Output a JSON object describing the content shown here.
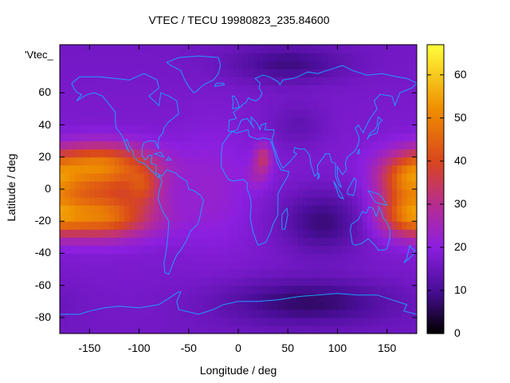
{
  "chart_data": {
    "type": "heatmap",
    "title": "VTEC / TECU 19980823_235.84600",
    "xlabel": "Longitude / deg",
    "ylabel": "Latitude / deg",
    "xlim": [
      -180,
      180
    ],
    "ylim": [
      -90,
      90
    ],
    "x_ticks": [
      -150,
      -100,
      -50,
      0,
      50,
      100,
      150
    ],
    "y_ticks": [
      60,
      40,
      20,
      0,
      -20,
      -40,
      -60,
      -80
    ],
    "colorbar": {
      "range": [
        0,
        67
      ],
      "ticks": [
        0,
        10,
        20,
        30,
        40,
        50,
        60
      ],
      "palette_stops": [
        {
          "v": 0,
          "color": "#000000"
        },
        {
          "v": 10,
          "color": "#4a0e99"
        },
        {
          "v": 20,
          "color": "#8c1fe0"
        },
        {
          "v": 30,
          "color": "#b82d8e"
        },
        {
          "v": 40,
          "color": "#d9471c"
        },
        {
          "v": 52,
          "color": "#ef8e00"
        },
        {
          "v": 67,
          "color": "#ffff3a"
        }
      ]
    },
    "overlay_label": "'Vtec_",
    "coastline_color": "#1f9cff",
    "background_level": 16,
    "features": [
      {
        "name": "Pacific equatorial anomaly north crest",
        "lon": -145,
        "lat": 10,
        "value": 52
      },
      {
        "name": "Pacific equatorial anomaly south crest",
        "lon": -125,
        "lat": -18,
        "value": 58
      },
      {
        "name": "Pacific enhancement near Central America",
        "lon": -92,
        "lat": 2,
        "value": 52
      },
      {
        "name": "West Pacific enhancement",
        "lon": 165,
        "lat": 5,
        "value": 50
      },
      {
        "name": "West Pacific enhancement south",
        "lon": 165,
        "lat": -15,
        "value": 48
      },
      {
        "name": "North Africa spot",
        "lon": 25,
        "lat": 20,
        "value": 32
      },
      {
        "name": "Indian Ocean depletion",
        "lon": 90,
        "lat": -18,
        "value": 6
      },
      {
        "name": "Southern Ocean depletion",
        "lon": 90,
        "lat": -70,
        "value": 4
      },
      {
        "name": "Arctic minimum",
        "lon": 45,
        "lat": 75,
        "value": 8
      }
    ]
  }
}
